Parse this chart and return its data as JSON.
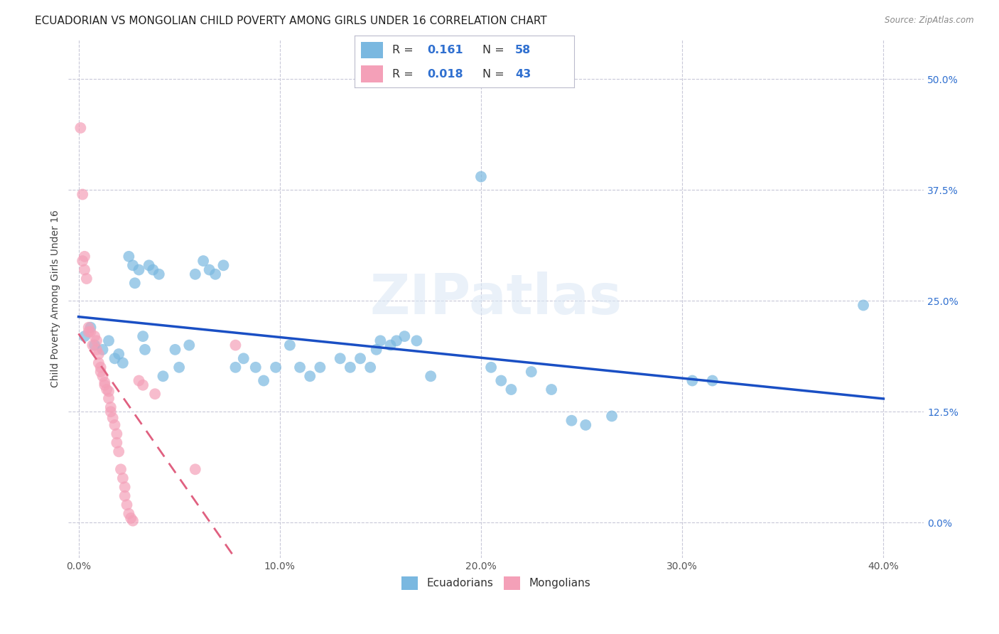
{
  "title": "ECUADORIAN VS MONGOLIAN CHILD POVERTY AMONG GIRLS UNDER 16 CORRELATION CHART",
  "source": "Source: ZipAtlas.com",
  "ylabel": "Child Poverty Among Girls Under 16",
  "xlabel_ticks": [
    "0.0%",
    "10.0%",
    "20.0%",
    "30.0%",
    "40.0%"
  ],
  "xlabel_vals": [
    0.0,
    0.1,
    0.2,
    0.3,
    0.4
  ],
  "ylabel_ticks": [
    "0.0%",
    "12.5%",
    "25.0%",
    "37.5%",
    "50.0%"
  ],
  "ylabel_vals": [
    0.0,
    0.125,
    0.25,
    0.375,
    0.5
  ],
  "xlim": [
    -0.005,
    0.42
  ],
  "ylim": [
    -0.04,
    0.545
  ],
  "watermark": "ZIPatlas",
  "blue_color": "#7ab8e0",
  "pink_color": "#f4a0b8",
  "blue_line_color": "#1a4fc4",
  "pink_line_color": "#e06080",
  "right_tick_color": "#3070d0",
  "background_color": "#ffffff",
  "grid_color": "#c8c8d8",
  "title_fontsize": 11,
  "axis_label_fontsize": 10,
  "tick_fontsize": 10,
  "blue_scatter": [
    [
      0.003,
      0.21
    ],
    [
      0.006,
      0.22
    ],
    [
      0.008,
      0.2
    ],
    [
      0.012,
      0.195
    ],
    [
      0.015,
      0.205
    ],
    [
      0.018,
      0.185
    ],
    [
      0.02,
      0.19
    ],
    [
      0.022,
      0.18
    ],
    [
      0.025,
      0.3
    ],
    [
      0.027,
      0.29
    ],
    [
      0.028,
      0.27
    ],
    [
      0.03,
      0.285
    ],
    [
      0.032,
      0.21
    ],
    [
      0.033,
      0.195
    ],
    [
      0.035,
      0.29
    ],
    [
      0.037,
      0.285
    ],
    [
      0.04,
      0.28
    ],
    [
      0.042,
      0.165
    ],
    [
      0.048,
      0.195
    ],
    [
      0.05,
      0.175
    ],
    [
      0.055,
      0.2
    ],
    [
      0.058,
      0.28
    ],
    [
      0.062,
      0.295
    ],
    [
      0.065,
      0.285
    ],
    [
      0.068,
      0.28
    ],
    [
      0.072,
      0.29
    ],
    [
      0.078,
      0.175
    ],
    [
      0.082,
      0.185
    ],
    [
      0.088,
      0.175
    ],
    [
      0.092,
      0.16
    ],
    [
      0.098,
      0.175
    ],
    [
      0.105,
      0.2
    ],
    [
      0.11,
      0.175
    ],
    [
      0.115,
      0.165
    ],
    [
      0.12,
      0.175
    ],
    [
      0.13,
      0.185
    ],
    [
      0.135,
      0.175
    ],
    [
      0.14,
      0.185
    ],
    [
      0.145,
      0.175
    ],
    [
      0.148,
      0.195
    ],
    [
      0.15,
      0.205
    ],
    [
      0.155,
      0.2
    ],
    [
      0.158,
      0.205
    ],
    [
      0.162,
      0.21
    ],
    [
      0.168,
      0.205
    ],
    [
      0.175,
      0.165
    ],
    [
      0.2,
      0.39
    ],
    [
      0.205,
      0.175
    ],
    [
      0.21,
      0.16
    ],
    [
      0.215,
      0.15
    ],
    [
      0.225,
      0.17
    ],
    [
      0.235,
      0.15
    ],
    [
      0.245,
      0.115
    ],
    [
      0.252,
      0.11
    ],
    [
      0.265,
      0.12
    ],
    [
      0.305,
      0.16
    ],
    [
      0.315,
      0.16
    ],
    [
      0.39,
      0.245
    ]
  ],
  "pink_scatter": [
    [
      0.001,
      0.445
    ],
    [
      0.002,
      0.37
    ],
    [
      0.002,
      0.295
    ],
    [
      0.003,
      0.3
    ],
    [
      0.003,
      0.285
    ],
    [
      0.004,
      0.275
    ],
    [
      0.005,
      0.22
    ],
    [
      0.005,
      0.215
    ],
    [
      0.006,
      0.215
    ],
    [
      0.007,
      0.2
    ],
    [
      0.008,
      0.21
    ],
    [
      0.009,
      0.205
    ],
    [
      0.009,
      0.195
    ],
    [
      0.01,
      0.19
    ],
    [
      0.01,
      0.18
    ],
    [
      0.011,
      0.175
    ],
    [
      0.011,
      0.17
    ],
    [
      0.012,
      0.165
    ],
    [
      0.013,
      0.158
    ],
    [
      0.013,
      0.155
    ],
    [
      0.014,
      0.15
    ],
    [
      0.015,
      0.148
    ],
    [
      0.015,
      0.14
    ],
    [
      0.016,
      0.13
    ],
    [
      0.016,
      0.125
    ],
    [
      0.017,
      0.118
    ],
    [
      0.018,
      0.11
    ],
    [
      0.019,
      0.1
    ],
    [
      0.019,
      0.09
    ],
    [
      0.02,
      0.08
    ],
    [
      0.021,
      0.06
    ],
    [
      0.022,
      0.05
    ],
    [
      0.023,
      0.04
    ],
    [
      0.023,
      0.03
    ],
    [
      0.024,
      0.02
    ],
    [
      0.025,
      0.01
    ],
    [
      0.026,
      0.005
    ],
    [
      0.027,
      0.002
    ],
    [
      0.03,
      0.16
    ],
    [
      0.032,
      0.155
    ],
    [
      0.038,
      0.145
    ],
    [
      0.058,
      0.06
    ],
    [
      0.078,
      0.2
    ]
  ],
  "legend_r_blue": "0.161",
  "legend_n_blue": "58",
  "legend_r_pink": "0.018",
  "legend_n_pink": "43"
}
